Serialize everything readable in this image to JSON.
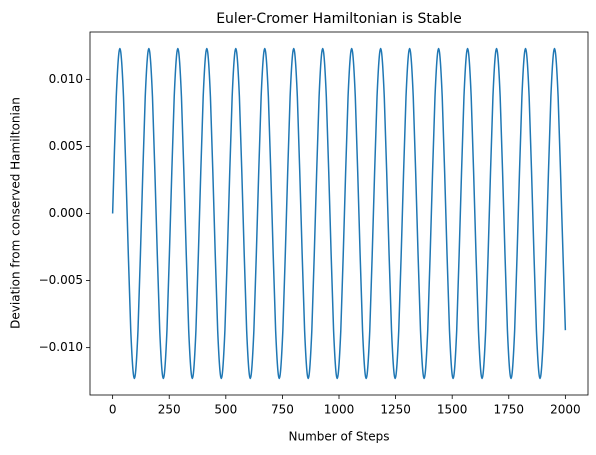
{
  "chart_data": {
    "type": "line",
    "title": "Euler-Cromer Hamiltonian is Stable",
    "xlabel": "Number of Steps",
    "ylabel": "Deviation from conserved Hamiltonian",
    "x": [
      0,
      16,
      32,
      48,
      64,
      80,
      96,
      112,
      128,
      144,
      160,
      176,
      192,
      208,
      224,
      240,
      256,
      272,
      288,
      304,
      320,
      336,
      352,
      368,
      384,
      400,
      416,
      432,
      448,
      464,
      480,
      496,
      512,
      528,
      544,
      560,
      576,
      592,
      608,
      624,
      640,
      656,
      672,
      688,
      704,
      720,
      736,
      752,
      768,
      784,
      800,
      816,
      832,
      848,
      864,
      880,
      896,
      912,
      928,
      944,
      960,
      976,
      992,
      1008,
      1024,
      1040,
      1056,
      1072,
      1088,
      1104,
      1120,
      1136,
      1152,
      1168,
      1184,
      1200,
      1216,
      1232,
      1248,
      1264,
      1280,
      1296,
      1312,
      1328,
      1344,
      1360,
      1376,
      1392,
      1408,
      1424,
      1440,
      1456,
      1472,
      1488,
      1504,
      1520,
      1536,
      1552,
      1568,
      1584,
      1600,
      1616,
      1632,
      1648,
      1664,
      1680,
      1696,
      1712,
      1728,
      1744,
      1760,
      1776,
      1792,
      1808,
      1824,
      1840,
      1856,
      1872,
      1888,
      1904,
      1920,
      1936,
      1952,
      1968,
      1984,
      2000
    ],
    "series": [
      {
        "name": "Deviation",
        "color": "#1f77b4",
        "values": [
          0,
          0.0087,
          0.0123,
          0.0087,
          0,
          -0.0087,
          -0.0123,
          -0.0087,
          0,
          0.0087,
          0.0123,
          0.0087,
          0,
          -0.0087,
          -0.0123,
          -0.0087,
          0,
          0.0087,
          0.0123,
          0.0087,
          0,
          -0.0087,
          -0.0123,
          -0.0087,
          0,
          0.0087,
          0.0123,
          0.0087,
          0,
          -0.0087,
          -0.0123,
          -0.0087,
          0,
          0.0087,
          0.0123,
          0.0087,
          0,
          -0.0087,
          -0.0123,
          -0.0087,
          0,
          0.0087,
          0.0123,
          0.0087,
          0,
          -0.0087,
          -0.0123,
          -0.0087,
          0,
          0.0087,
          0.0123,
          0.0087,
          0,
          -0.0087,
          -0.0123,
          -0.0087,
          0,
          0.0087,
          0.0123,
          0.0087,
          0,
          -0.0087,
          -0.0123,
          -0.0087,
          0,
          0.0087,
          0.0123,
          0.0087,
          0,
          -0.0087,
          -0.0123,
          -0.0087,
          0,
          0.0087,
          0.0123,
          0.0087,
          0,
          -0.0087,
          -0.0123,
          -0.0087,
          0,
          0.0087,
          0.0123,
          0.0087,
          0,
          -0.0087,
          -0.0123,
          -0.0087,
          0,
          0.0087,
          0.0123,
          0.0087,
          0,
          -0.0087,
          -0.0123,
          -0.0087,
          0,
          0.0087,
          0.0123,
          0.0087,
          0,
          -0.0087,
          -0.0123,
          -0.0087,
          0,
          0.0087,
          0.0123,
          0.0087,
          0,
          -0.0087,
          -0.0123,
          -0.0087,
          0,
          0.0087,
          0.0123,
          0.0087,
          0,
          -0.0087,
          -0.0123,
          -0.0087,
          0,
          0.0087,
          0.0123,
          0.0087,
          0,
          -0.0087
        ]
      }
    ],
    "xlim": [
      -100,
      2100
    ],
    "ylim": [
      -0.01353,
      0.01353
    ],
    "xticks": [
      0,
      250,
      500,
      750,
      1000,
      1250,
      1500,
      1750,
      2000
    ],
    "yticks": [
      {
        "value": -0.01,
        "label": "−0.010"
      },
      {
        "value": -0.005,
        "label": "−0.005"
      },
      {
        "value": 0,
        "label": "0.000"
      },
      {
        "value": 0.005,
        "label": "0.005"
      },
      {
        "value": 0.01,
        "label": "0.010"
      }
    ],
    "grid": false
  }
}
